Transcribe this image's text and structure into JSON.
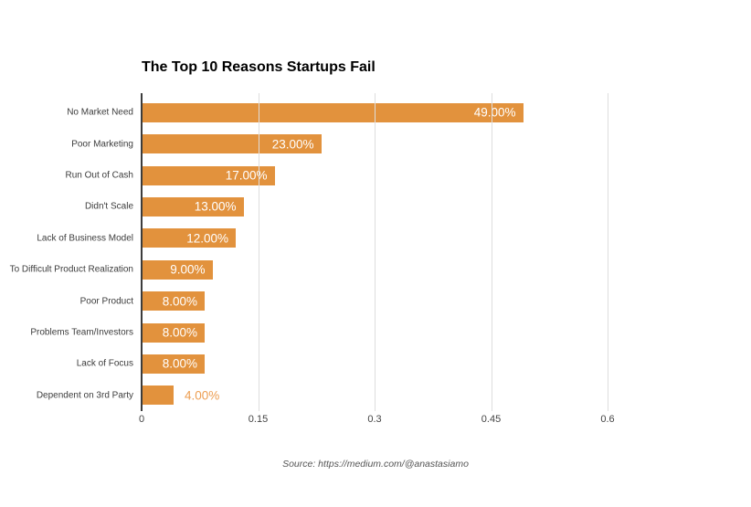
{
  "title": "The Top 10 Reasons Startups Fail",
  "source": "Source: https://medium.com/@anastasiamo",
  "colors": {
    "bar": "#e2923d",
    "value_label_inside": "#ffffff",
    "value_label_outside": "#ed9e52",
    "gridline": "#dddddd",
    "zero_axis": "#3c3c3c",
    "category_text": "#3c3c3c",
    "tick_text": "#444444",
    "title_text": "#000000",
    "source_text": "#555555",
    "background": "#ffffff"
  },
  "chart_data": {
    "type": "bar",
    "orientation": "horizontal",
    "title": "The Top 10 Reasons Startups Fail",
    "categories": [
      "No Market Need",
      "Poor Marketing",
      "Run Out of Cash",
      "Didn't Scale",
      "Lack of Business Model",
      "To Difficult Product Realization",
      "Poor Product",
      "Problems Team/Investors",
      "Lack of Focus",
      "Dependent on 3rd Party"
    ],
    "values": [
      0.49,
      0.23,
      0.17,
      0.13,
      0.12,
      0.09,
      0.08,
      0.08,
      0.08,
      0.04
    ],
    "value_labels": [
      "49.00%",
      "23.00%",
      "17.00%",
      "13.00%",
      "12.00%",
      "9.00%",
      "8.00%",
      "8.00%",
      "8.00%",
      "4.00%"
    ],
    "xlabel": "",
    "ylabel": "",
    "xlim": [
      0,
      0.6
    ],
    "xticks": [
      0,
      0.15,
      0.3,
      0.45,
      0.6
    ],
    "xtick_labels": [
      "0",
      "0.15",
      "0.3",
      "0.45",
      "0.6"
    ],
    "grid": true,
    "legend": false
  }
}
